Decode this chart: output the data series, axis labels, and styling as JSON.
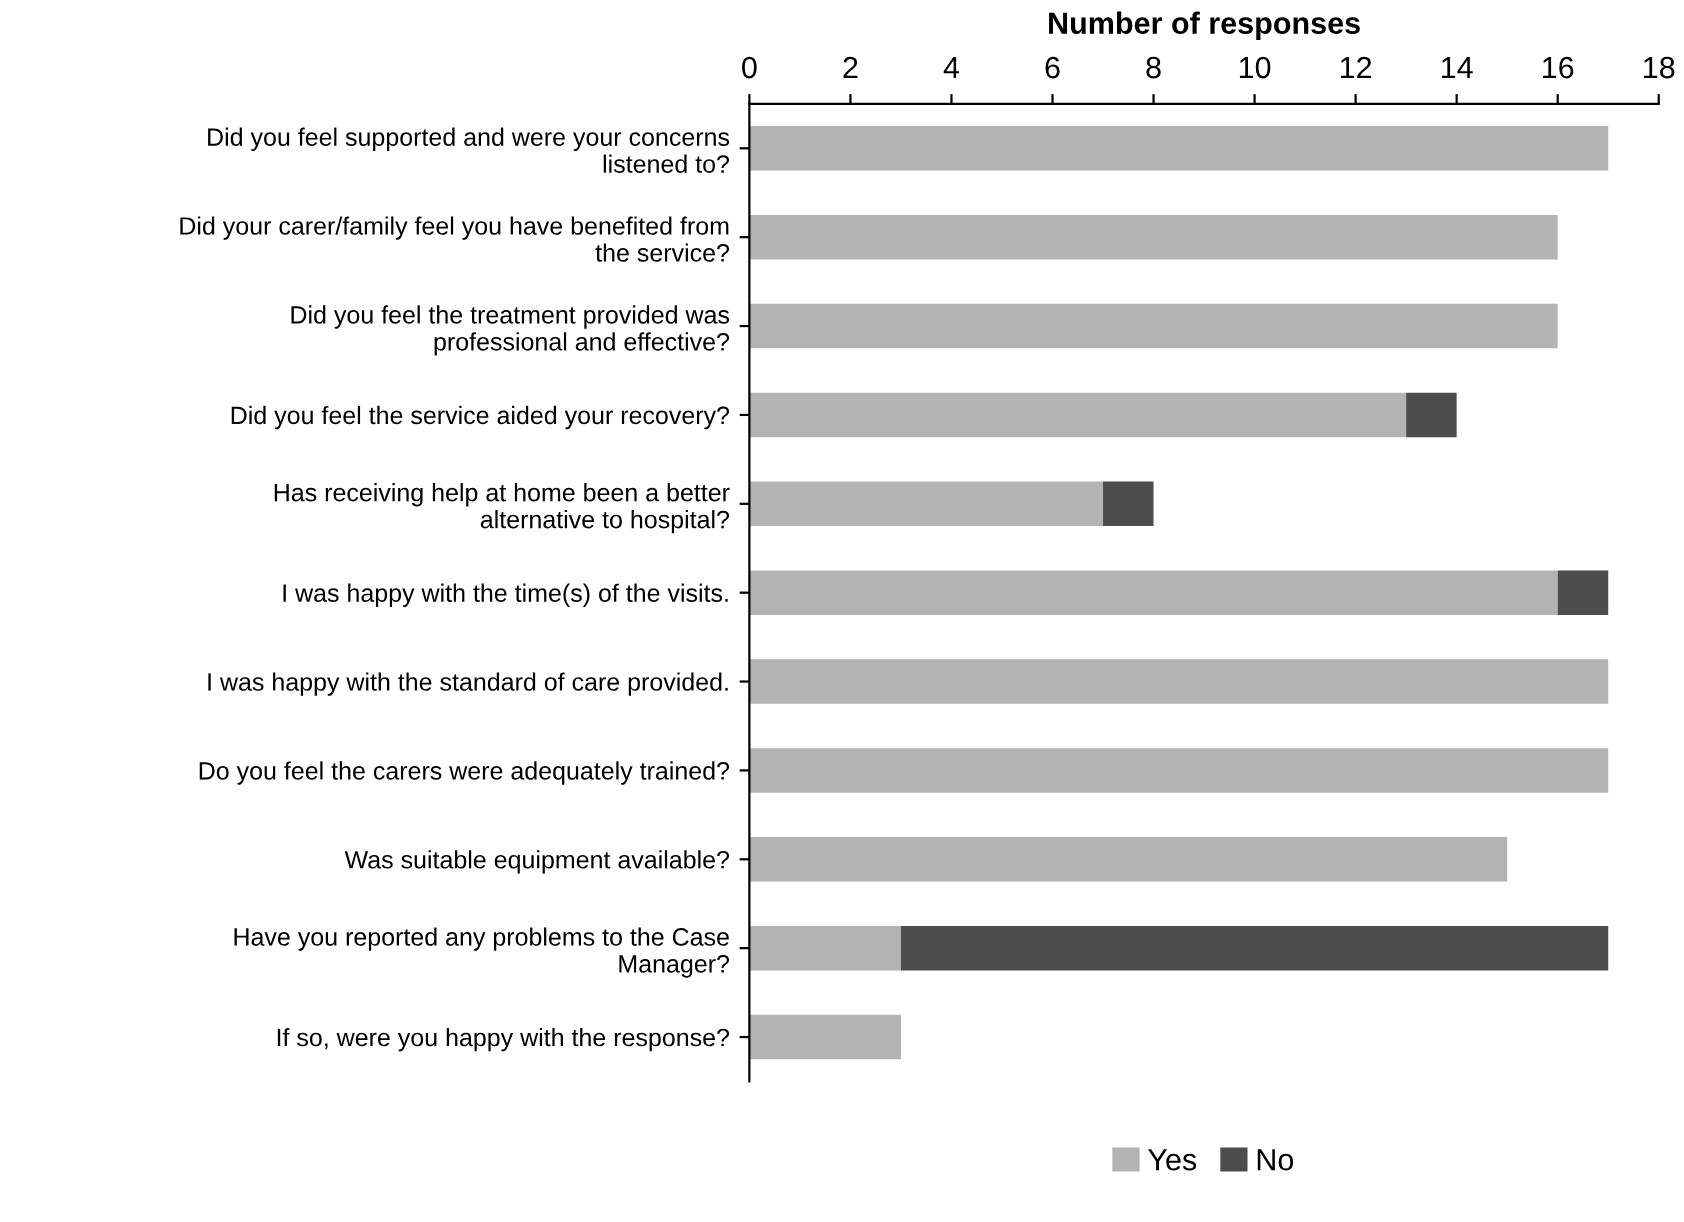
{
  "chart_data": {
    "type": "bar",
    "orientation": "horizontal",
    "stacked": true,
    "xlabel": "Number of responses",
    "categories": [
      "Did you feel supported and were your concerns\nlistened to?",
      "Did your carer/family feel you have benefited from\nthe service?",
      "Did you feel the treatment provided was\nprofessional and effective?",
      "Did you feel the service aided your recovery?",
      "Has receiving help at home been a better\nalternative to hospital?",
      "I was happy with the time(s) of the visits.",
      "I was happy with the standard of care provided.",
      "Do you feel the carers were adequately trained?",
      "Was suitable equipment available?",
      "Have you reported any problems to the Case\nManager?",
      "If so, were you happy with the response?"
    ],
    "series": [
      {
        "name": "Yes",
        "color": "#b3b3b3",
        "values": [
          17,
          16,
          16,
          13,
          7,
          16,
          17,
          17,
          15,
          3,
          3
        ]
      },
      {
        "name": "No",
        "color": "#4d4d4d",
        "values": [
          0,
          0,
          0,
          1,
          1,
          1,
          0,
          0,
          0,
          14,
          0
        ]
      }
    ],
    "xlim": [
      0,
      18
    ],
    "xticks": [
      0,
      2,
      4,
      6,
      8,
      10,
      12,
      14,
      16,
      18
    ],
    "grid": false,
    "legend": "bottom"
  }
}
